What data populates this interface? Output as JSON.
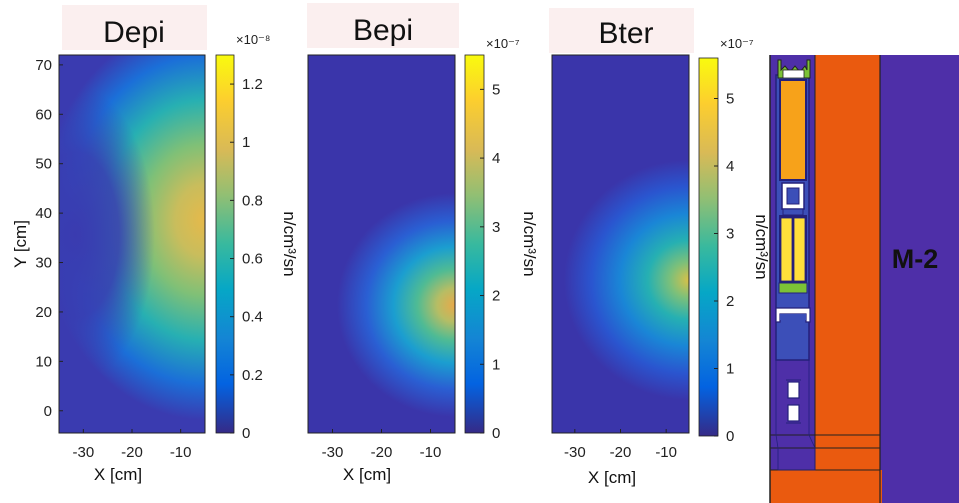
{
  "colors": {
    "title_bg": "#fbefef",
    "axis": "#222222",
    "geom_purple": "#4e2fa8",
    "geom_orange": "#ea5a0f",
    "geom_yellow": "#ffe03a",
    "geom_amber": "#f7a21a",
    "geom_green": "#7cc236",
    "geom_navy": "#24207a",
    "geom_blue": "#3c4fb8"
  },
  "chart_data": [
    {
      "type": "heatmap",
      "title": "Depi",
      "xlabel": "X [cm]",
      "ylabel": "Y [cm]",
      "xlim": [
        -35,
        -5
      ],
      "ylim": [
        -4.5,
        72
      ],
      "x_ticks": [
        "-30",
        "-20",
        "-10"
      ],
      "y_ticks": [
        "0",
        "10",
        "20",
        "30",
        "40",
        "50",
        "60",
        "70"
      ],
      "colorbar": {
        "label": "n/cm³/sn",
        "exponent": "×10⁻⁸",
        "range": [
          0,
          1.3
        ],
        "ticks": [
          "0",
          "0.2",
          "0.4",
          "0.6",
          "0.8",
          "1",
          "1.2"
        ]
      },
      "peak_value": 1.27,
      "peak_location": {
        "x": -7,
        "y": 40
      },
      "colormap": "parula"
    },
    {
      "type": "heatmap",
      "title": "Bepi",
      "xlabel": "X [cm]",
      "ylabel": "",
      "xlim": [
        -35,
        -5
      ],
      "ylim": [
        -4.5,
        72
      ],
      "x_ticks": [
        "-30",
        "-20",
        "-10"
      ],
      "y_ticks": [],
      "colorbar": {
        "label": "n/cm³/sn",
        "exponent": "×10⁻⁷",
        "range": [
          0,
          5.5
        ],
        "ticks": [
          "0",
          "1",
          "2",
          "3",
          "4",
          "5"
        ]
      },
      "peak_value": 5.4,
      "peak_location": {
        "x": -5,
        "y": 22
      },
      "colormap": "parula"
    },
    {
      "type": "heatmap",
      "title": "Bter",
      "xlabel": "X [cm]",
      "ylabel": "",
      "xlim": [
        -35,
        -5
      ],
      "ylim": [
        -4.5,
        72
      ],
      "x_ticks": [
        "-30",
        "-20",
        "-10"
      ],
      "y_ticks": [],
      "colorbar": {
        "label": "n/cm³/sn",
        "exponent": "×10⁻⁷",
        "range": [
          0,
          5.6
        ],
        "ticks": [
          "0",
          "1",
          "2",
          "3",
          "4",
          "5"
        ]
      },
      "peak_value": 5.5,
      "peak_location": {
        "x": -5,
        "y": 27
      },
      "colormap": "parula"
    }
  ],
  "geometry_panel": {
    "label": "M-2"
  }
}
